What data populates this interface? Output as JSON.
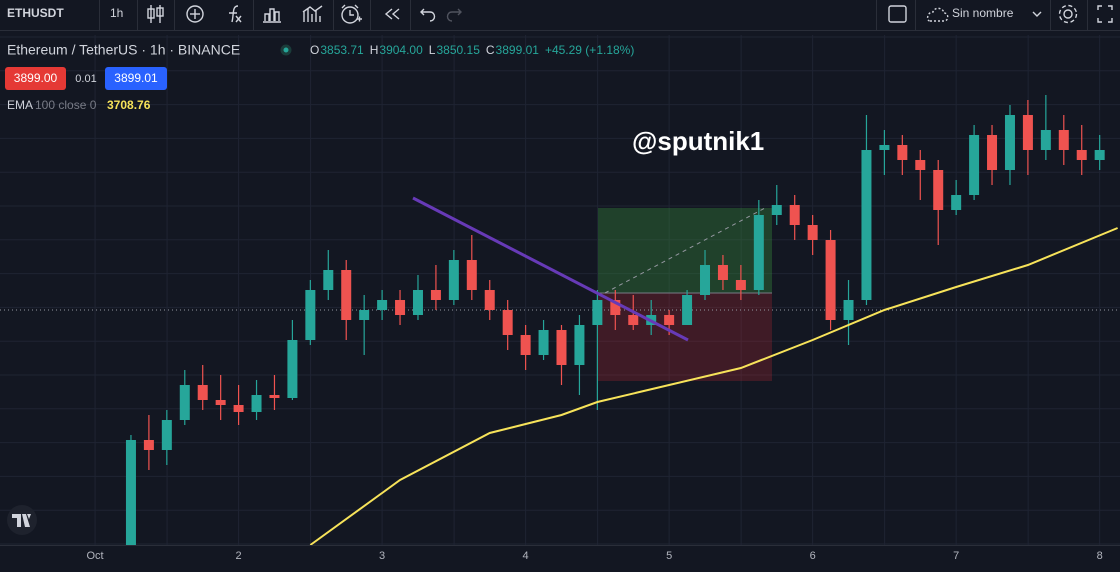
{
  "toolbar": {
    "symbol": "ETHUSDT",
    "interval": "1h",
    "layout_name": "Sin nombre"
  },
  "chart_data": {
    "type": "candlestick",
    "title": "Ethereum / TetherUS · 1h · BINANCE",
    "ohlc": [
      {
        "label": "O",
        "value": "3853.71"
      },
      {
        "label": "H",
        "value": "3904.00"
      },
      {
        "label": "L",
        "value": "3850.15"
      },
      {
        "label": "C",
        "value": "3899.01"
      }
    ],
    "change": "+45.29 (+1.18%)",
    "sell_price": "3899.00",
    "spread": "0.01",
    "last_price": 3899.01,
    "annotation": "@sputnik1",
    "up_color": "#26a69a",
    "down_color": "#ef5350",
    "x": [
      6,
      9,
      12,
      15,
      18,
      21,
      24,
      27,
      30,
      33,
      36,
      39,
      42,
      45,
      48,
      51,
      54,
      57,
      60,
      63,
      66,
      69,
      72,
      75,
      78,
      81,
      84,
      87,
      90,
      93,
      96,
      99,
      102,
      105,
      108,
      111,
      114,
      117,
      120,
      123,
      126,
      129,
      132,
      135,
      138,
      141,
      144,
      147,
      150,
      153,
      156,
      159,
      162,
      165,
      168
    ],
    "open": [
      3546.5,
      3704,
      3689,
      3734,
      3786.5,
      3764,
      3756.5,
      3746,
      3771.5,
      3767,
      3854,
      3929,
      3959,
      3884,
      3899,
      3914,
      3891.5,
      3929,
      3914,
      3974,
      3929,
      3899,
      3861.5,
      3831.5,
      3869,
      3816.5,
      3876.5,
      3914,
      3891.5,
      3876.5,
      3891.5,
      3876.5,
      3921.5,
      3966.5,
      3944,
      3929,
      4041.5,
      4056.5,
      4026.5,
      4004,
      3884,
      3914,
      4139,
      4146.5,
      4124,
      4109,
      4049,
      4071.5,
      4161.5,
      4109,
      4191.5,
      4139,
      4169,
      4139,
      4124
    ],
    "high": [
      3711.5,
      3741.5,
      3749,
      3809,
      3816.5,
      3801.5,
      3786.5,
      3794,
      3801.5,
      3884,
      3944,
      3989,
      3974,
      3921.5,
      3929,
      3929,
      3951.5,
      3966.5,
      3989,
      4011.5,
      3944,
      3914,
      3876.5,
      3884,
      3876.5,
      3891.5,
      3929,
      3929,
      3921.5,
      3914,
      3899,
      3929,
      3989,
      3981.5,
      3966.5,
      4064,
      4086.5,
      4071.5,
      4041.5,
      4019,
      3944,
      4191.5,
      4169,
      4161.5,
      4139,
      4124,
      4094,
      4176.5,
      4176.5,
      4206.5,
      4214,
      4221.5,
      4191.5,
      4176.5,
      4161.5
    ],
    "low": [
      3546.5,
      3659,
      3666.5,
      3726.5,
      3749,
      3734,
      3726.5,
      3734,
      3749,
      3764,
      3846.5,
      3914,
      3854,
      3831.5,
      3884,
      3876.5,
      3884,
      3899,
      3906.5,
      3914,
      3884,
      3839,
      3809,
      3824,
      3786.5,
      3771.5,
      3749,
      3869,
      3869,
      3861.5,
      3861.5,
      3876.5,
      3914,
      3929,
      3914,
      3921.5,
      4026.5,
      4004,
      3981.5,
      3869,
      3846.5,
      3906.5,
      4101.5,
      4101.5,
      4064,
      3996.5,
      4041.5,
      4064,
      4086.5,
      4086.5,
      4101.5,
      4124,
      4116.5,
      4101.5,
      4109
    ],
    "close": [
      3704,
      3689,
      3734,
      3786.5,
      3764,
      3756.5,
      3746,
      3771.5,
      3767,
      3854,
      3929,
      3959,
      3884,
      3899,
      3914,
      3891.5,
      3929,
      3914,
      3974,
      3929,
      3899,
      3861.5,
      3831.5,
      3869,
      3816.5,
      3876.5,
      3914,
      3891.5,
      3876.5,
      3891.5,
      3876.5,
      3921.5,
      3966.5,
      3944,
      3929,
      4041.5,
      4056.5,
      4026.5,
      4004,
      3884,
      3914,
      4139,
      4146.5,
      4124,
      4109,
      4049,
      4071.5,
      4161.5,
      4109,
      4191.5,
      4139,
      4169,
      4139,
      4124,
      4139
    ],
    "ema": {
      "name": "EMA",
      "params": "100 close 0",
      "value": 3708.76,
      "color": "#f7e35a",
      "x": [
        36,
        51,
        66,
        78,
        84,
        96,
        108,
        120,
        132,
        144,
        156,
        171
      ],
      "values": [
        3546.5,
        3644,
        3714.5,
        3741.5,
        3761,
        3786.5,
        3812,
        3854,
        3899,
        3933.5,
        3966.5,
        4022
      ]
    },
    "xlim": [
      -15.9,
      171.4
    ],
    "ylim": [
      3546.5,
      4311.5
    ],
    "xticks": [
      {
        "value": 0,
        "label": "Oct"
      },
      {
        "value": 24,
        "label": "2"
      },
      {
        "value": 48,
        "label": "3"
      },
      {
        "value": 72,
        "label": "4"
      },
      {
        "value": 96,
        "label": "5"
      },
      {
        "value": 120,
        "label": "6"
      },
      {
        "value": 144,
        "label": "7"
      },
      {
        "value": 168,
        "label": "8"
      }
    ],
    "grid": true
  }
}
